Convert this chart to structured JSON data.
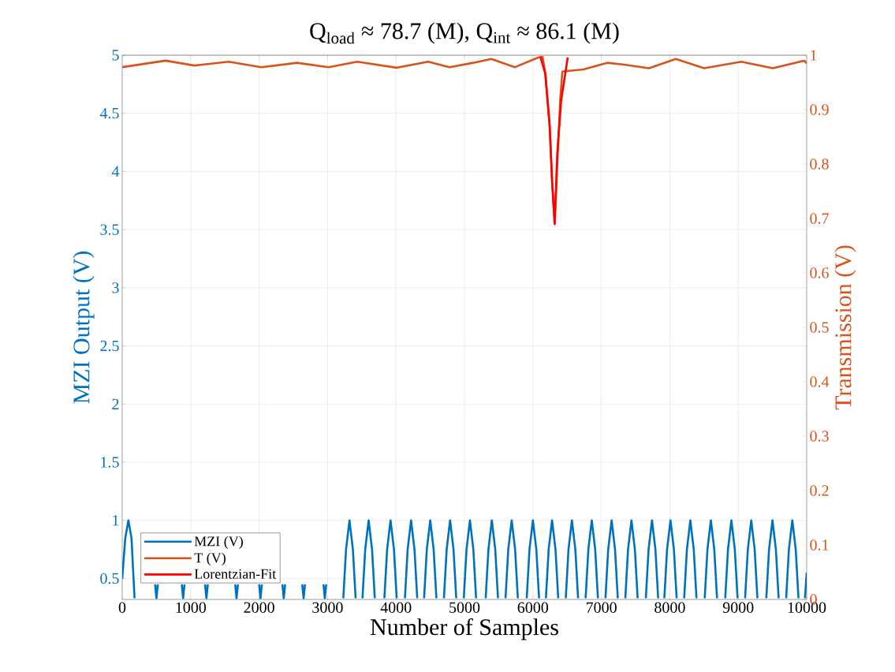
{
  "chart_data": {
    "type": "line",
    "title": "Q$_{load}$ ≈ 78.7 (M), Q$_{int}$ ≈ 86.1 (M)",
    "xlabel": "Number of Samples",
    "ylabel": "MZI Output (V)",
    "y2label": "Transmission (V)",
    "xlim": [
      0,
      10000
    ],
    "xticks": [
      0,
      1000,
      2000,
      3000,
      4000,
      5000,
      6000,
      7000,
      8000,
      9000,
      10000
    ],
    "ylim": [
      0.32,
      5
    ],
    "yticks": [
      0.5,
      1,
      1.5,
      2,
      2.5,
      3,
      3.5,
      4,
      4.5,
      5
    ],
    "y2lim": [
      0,
      1
    ],
    "y2ticks": [
      0,
      0.1,
      0.2,
      0.3,
      0.4,
      0.5,
      0.6,
      0.7,
      0.8,
      0.9,
      1
    ],
    "grid": true,
    "legend": "bottom left",
    "series": [
      {
        "name": "MZI (V)",
        "color": "#0072bd",
        "axis": "y",
        "x": [
          0,
          45,
          90,
          135,
          180,
          240,
          480,
          500,
          520,
          560,
          870,
          890,
          910,
          950,
          1210,
          1230,
          1250,
          1290,
          1650,
          1670,
          1690,
          1730,
          2000,
          2020,
          2040,
          2080,
          2340,
          2360,
          2380,
          2420,
          2630,
          2650,
          2670,
          2710,
          2940,
          2960,
          2980,
          3020,
          3230,
          3270,
          3320,
          3370,
          3410,
          3460,
          3510,
          3550,
          3600,
          3650,
          3690,
          3740,
          3830,
          3870,
          3920,
          3970,
          4010,
          4060,
          4130,
          4170,
          4220,
          4270,
          4310,
          4360,
          4410,
          4450,
          4500,
          4550,
          4590,
          4640,
          4700,
          4740,
          4790,
          4840,
          4880,
          4930,
          4990,
          5030,
          5080,
          5130,
          5170,
          5220,
          5310,
          5350,
          5400,
          5450,
          5490,
          5540,
          5600,
          5640,
          5690,
          5740,
          5780,
          5830,
          5910,
          5950,
          6000,
          6050,
          6090,
          6140,
          6190,
          6230,
          6280,
          6330,
          6370,
          6420,
          6480,
          6520,
          6570,
          6620,
          6660,
          6710,
          6770,
          6810,
          6860,
          6910,
          6950,
          7000,
          7060,
          7100,
          7150,
          7200,
          7240,
          7290,
          7350,
          7390,
          7440,
          7490,
          7530,
          7580,
          7650,
          7690,
          7740,
          7790,
          7830,
          7880,
          7920,
          7960,
          8010,
          8060,
          8100,
          8150,
          8210,
          8250,
          8300,
          8350,
          8390,
          8440,
          8510,
          8550,
          8600,
          8650,
          8690,
          8740,
          8810,
          8850,
          8900,
          8950,
          8990,
          9040,
          9100,
          9140,
          9190,
          9240,
          9280,
          9330,
          9410,
          9450,
          9500,
          9550,
          9590,
          9640,
          9700,
          9740,
          9790,
          9840,
          9880,
          9935,
          9975,
          10000
        ],
        "values": [
          0.5,
          0.85,
          1,
          0.85,
          0.33,
          null,
          0.45,
          0.33,
          0.45,
          null,
          0.45,
          0.33,
          0.45,
          null,
          0.45,
          0.33,
          0.45,
          null,
          0.45,
          0.33,
          0.45,
          null,
          0.45,
          0.33,
          0.45,
          null,
          0.45,
          0.33,
          0.45,
          null,
          0.45,
          0.33,
          0.45,
          null,
          0.45,
          0.33,
          0.45,
          null,
          0.33,
          0.75,
          1,
          0.75,
          0.33,
          null,
          0.33,
          0.75,
          1,
          0.75,
          0.33,
          null,
          0.33,
          0.75,
          1,
          0.75,
          0.33,
          null,
          0.33,
          0.75,
          1,
          0.75,
          0.33,
          null,
          0.33,
          0.75,
          1,
          0.75,
          0.33,
          null,
          0.33,
          0.75,
          1,
          0.75,
          0.33,
          null,
          0.33,
          0.75,
          1,
          0.75,
          0.33,
          null,
          0.33,
          0.75,
          1,
          0.75,
          0.33,
          null,
          0.33,
          0.75,
          1,
          0.75,
          0.33,
          null,
          0.33,
          0.75,
          1,
          0.75,
          0.33,
          null,
          0.33,
          0.75,
          1,
          0.75,
          0.33,
          null,
          0.33,
          0.75,
          1,
          0.75,
          0.33,
          null,
          0.33,
          0.75,
          1,
          0.75,
          0.33,
          null,
          0.33,
          0.75,
          1,
          0.75,
          0.33,
          null,
          0.33,
          0.75,
          1,
          0.75,
          0.33,
          null,
          0.33,
          0.75,
          1,
          0.75,
          0.33,
          null,
          0.33,
          0.75,
          1,
          0.75,
          0.33,
          null,
          0.33,
          0.75,
          1,
          0.75,
          0.33,
          null,
          0.33,
          0.75,
          1,
          0.75,
          0.33,
          null,
          0.33,
          0.75,
          1,
          0.75,
          0.33,
          null,
          0.33,
          0.75,
          1,
          0.75,
          0.33,
          null,
          0.33,
          0.75,
          1,
          0.75,
          0.33,
          null,
          0.33,
          0.75,
          1,
          0.75,
          0.33,
          null,
          0.33,
          0.55
        ]
      },
      {
        "name": "T (V)",
        "color": "#d95319",
        "axis": "y2",
        "x": [
          0,
          634,
          1056,
          1555,
          2035,
          2554,
          3015,
          3433,
          4010,
          4470,
          4781,
          5127,
          5392,
          5737,
          6083,
          6141,
          6183,
          6245,
          6280,
          6318,
          6356,
          6400,
          6430,
          6740,
          7085,
          7316,
          7696,
          8088,
          8502,
          9044,
          9505,
          9965,
          10000
        ],
        "values": [
          0.978,
          0.99,
          0.981,
          0.988,
          0.978,
          0.986,
          0.978,
          0.988,
          0.977,
          0.988,
          0.978,
          0.986,
          0.993,
          0.978,
          0.996,
          0.997,
          0.966,
          0.87,
          0.77,
          0.69,
          0.8,
          0.92,
          0.97,
          0.974,
          0.986,
          0.983,
          0.976,
          0.993,
          0.976,
          0.988,
          0.976,
          0.99,
          0.985
        ]
      },
      {
        "name": "Lorentzian-Fit",
        "color": "#ff0000",
        "axis": "y2",
        "x": [
          6110,
          6180,
          6245,
          6280,
          6318,
          6356,
          6413,
          6509
        ],
        "values": [
          0.997,
          0.966,
          0.87,
          0.77,
          0.69,
          0.82,
          0.917,
          0.996
        ]
      }
    ]
  }
}
